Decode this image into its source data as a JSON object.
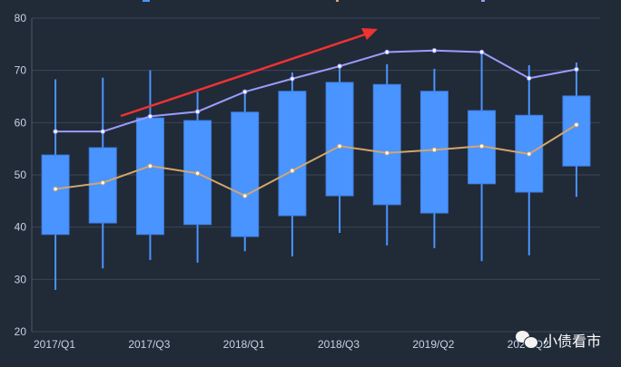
{
  "chart_data": {
    "type": "boxplot",
    "categories": [
      "2017/Q1",
      "",
      "2017/Q3",
      "",
      "2018/Q1",
      "",
      "2018/Q3",
      "",
      "2019/Q2",
      "",
      "2020/Q2",
      ""
    ],
    "ylim": [
      20,
      80
    ],
    "yticks": [
      20,
      30,
      40,
      50,
      60,
      70,
      80
    ],
    "grid": true,
    "boxes": [
      {
        "min": 28.0,
        "q1": 38.6,
        "q3": 53.8,
        "max": 68.3
      },
      {
        "min": 32.1,
        "q1": 40.8,
        "q3": 55.2,
        "max": 68.6
      },
      {
        "min": 33.7,
        "q1": 38.6,
        "q3": 60.9,
        "max": 70.0
      },
      {
        "min": 33.2,
        "q1": 40.5,
        "q3": 60.4,
        "max": 65.9
      },
      {
        "min": 35.4,
        "q1": 38.2,
        "q3": 62.0,
        "max": 65.9
      },
      {
        "min": 34.4,
        "q1": 42.2,
        "q3": 66.0,
        "max": 69.6
      },
      {
        "min": 38.9,
        "q1": 46.0,
        "q3": 67.7,
        "max": 70.8
      },
      {
        "min": 36.5,
        "q1": 44.3,
        "q3": 67.3,
        "max": 71.2
      },
      {
        "min": 36.0,
        "q1": 42.7,
        "q3": 66.0,
        "max": 70.3
      },
      {
        "min": 33.5,
        "q1": 48.3,
        "q3": 62.3,
        "max": 73.6
      },
      {
        "min": 34.6,
        "q1": 46.7,
        "q3": 61.4,
        "max": 71.0
      },
      {
        "min": 45.8,
        "q1": 51.7,
        "q3": 65.1,
        "max": 71.5
      }
    ],
    "series": [
      {
        "type": "line",
        "color": "#9a9cff",
        "values": [
          58.3,
          58.3,
          61.2,
          62.1,
          65.9,
          68.4,
          70.8,
          73.5,
          73.8,
          73.5,
          68.5,
          70.2
        ]
      },
      {
        "type": "line",
        "color": "#d2a66e",
        "values": [
          47.3,
          48.5,
          51.7,
          50.3,
          46.0,
          50.8,
          55.5,
          54.2,
          54.8,
          55.5,
          54.0,
          59.6
        ]
      }
    ],
    "box_color": "#4a94ff",
    "annotation": {
      "type": "arrow",
      "color": "#f03232",
      "direction": "up-right"
    },
    "legend": "top"
  },
  "watermark": "小债看市"
}
